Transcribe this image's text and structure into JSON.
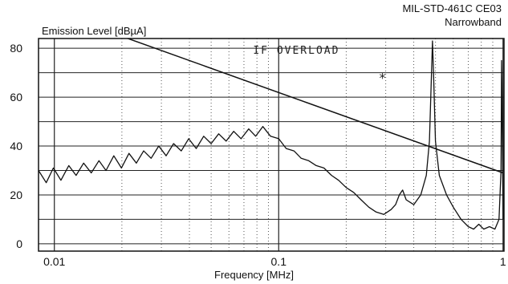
{
  "chart_data": {
    "type": "line",
    "title": "MIL-STD-461C CE03",
    "subtitle": "Narrowband",
    "xlabel": "Frequency [MHz]",
    "ylabel": "Emission Level [dBµA]",
    "x_scale": "log",
    "xlim": [
      0.0085,
      1.01
    ],
    "ylim": [
      -3,
      84
    ],
    "x_ticks": [
      {
        "value": 0.01,
        "label": "0.01"
      },
      {
        "value": 0.1,
        "label": "0.1"
      },
      {
        "value": 1,
        "label": "1"
      }
    ],
    "y_ticks": [
      {
        "value": 0,
        "label": "0"
      },
      {
        "value": 20,
        "label": "20"
      },
      {
        "value": 40,
        "label": "40"
      },
      {
        "value": 60,
        "label": "60"
      },
      {
        "value": 80,
        "label": "80"
      }
    ],
    "grid": true,
    "annotations": [
      {
        "text": "IF OVERLOAD",
        "x": 0.12,
        "y": 79
      },
      {
        "text": "*",
        "x": 0.29,
        "y": 68
      }
    ],
    "series": [
      {
        "role": "limit",
        "points": [
          [
            0.0185,
            86
          ],
          [
            1.0,
            29
          ]
        ]
      },
      {
        "role": "measured",
        "points": [
          [
            0.0085,
            30
          ],
          [
            0.0092,
            25
          ],
          [
            0.0099,
            31
          ],
          [
            0.0107,
            26
          ],
          [
            0.0116,
            32
          ],
          [
            0.0125,
            28
          ],
          [
            0.0135,
            33
          ],
          [
            0.0146,
            29
          ],
          [
            0.0158,
            34
          ],
          [
            0.017,
            30
          ],
          [
            0.0184,
            36
          ],
          [
            0.0199,
            31
          ],
          [
            0.0215,
            37
          ],
          [
            0.0232,
            33
          ],
          [
            0.025,
            38
          ],
          [
            0.027,
            35
          ],
          [
            0.0292,
            40
          ],
          [
            0.0315,
            36
          ],
          [
            0.034,
            41
          ],
          [
            0.0368,
            38
          ],
          [
            0.0397,
            43
          ],
          [
            0.0429,
            39
          ],
          [
            0.0463,
            44
          ],
          [
            0.05,
            41
          ],
          [
            0.054,
            45
          ],
          [
            0.0583,
            42
          ],
          [
            0.063,
            46
          ],
          [
            0.068,
            43
          ],
          [
            0.0735,
            47
          ],
          [
            0.079,
            44
          ],
          [
            0.085,
            48
          ],
          [
            0.092,
            44
          ],
          [
            0.1,
            43
          ],
          [
            0.108,
            39
          ],
          [
            0.117,
            38
          ],
          [
            0.126,
            35
          ],
          [
            0.136,
            34
          ],
          [
            0.147,
            32
          ],
          [
            0.159,
            31
          ],
          [
            0.172,
            28
          ],
          [
            0.185,
            26
          ],
          [
            0.2,
            23
          ],
          [
            0.216,
            21
          ],
          [
            0.233,
            18
          ],
          [
            0.252,
            15
          ],
          [
            0.272,
            13
          ],
          [
            0.294,
            12
          ],
          [
            0.317,
            14
          ],
          [
            0.332,
            16
          ],
          [
            0.345,
            20
          ],
          [
            0.357,
            22
          ],
          [
            0.37,
            18
          ],
          [
            0.4,
            16
          ],
          [
            0.43,
            20
          ],
          [
            0.455,
            28
          ],
          [
            0.47,
            42
          ],
          [
            0.48,
            70
          ],
          [
            0.485,
            83
          ],
          [
            0.49,
            70
          ],
          [
            0.5,
            42
          ],
          [
            0.52,
            28
          ],
          [
            0.56,
            20
          ],
          [
            0.6,
            15
          ],
          [
            0.65,
            10
          ],
          [
            0.7,
            7
          ],
          [
            0.74,
            6
          ],
          [
            0.78,
            8
          ],
          [
            0.82,
            6
          ],
          [
            0.87,
            7
          ],
          [
            0.92,
            6
          ],
          [
            0.96,
            10
          ],
          [
            0.98,
            30
          ],
          [
            0.985,
            75
          ],
          [
            0.99,
            60
          ],
          [
            1.0,
            10
          ]
        ]
      }
    ]
  }
}
